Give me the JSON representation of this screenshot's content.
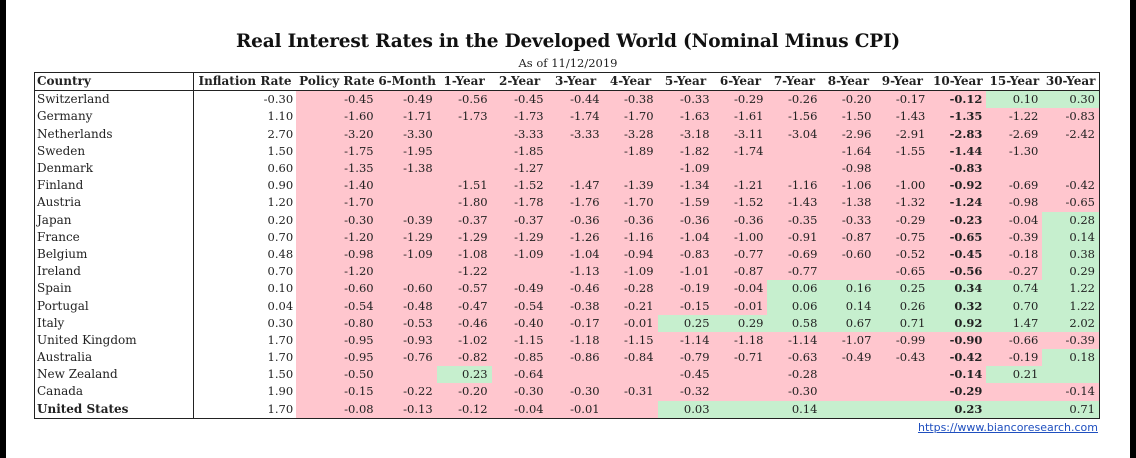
{
  "title": "Real Interest Rates in the Developed World (Nominal Minus CPI)",
  "subtitle": "As of 11/12/2019",
  "source_link": "https://www.biancoresearch.com",
  "colors": {
    "negative": "#ffc6ce",
    "positive": "#c6efce"
  },
  "chart_data": {
    "type": "table",
    "title": "Real Interest Rates in the Developed World (Nominal Minus CPI)",
    "columns": [
      "Country",
      "Inflation Rate",
      "Policy Rate",
      "6-Month",
      "1-Year",
      "2-Year",
      "3-Year",
      "4-Year",
      "5-Year",
      "6-Year",
      "7-Year",
      "8-Year",
      "9-Year",
      "10-Year",
      "15-Year",
      "30-Year"
    ],
    "rows": [
      [
        "Switzerland",
        "-0.30",
        "-0.45",
        "-0.49",
        "-0.56",
        "-0.45",
        "-0.44",
        "-0.38",
        "-0.33",
        "-0.29",
        "-0.26",
        "-0.20",
        "-0.17",
        "-0.12",
        "0.10",
        "0.30"
      ],
      [
        "Germany",
        "1.10",
        "-1.60",
        "-1.71",
        "-1.73",
        "-1.73",
        "-1.74",
        "-1.70",
        "-1.63",
        "-1.61",
        "-1.56",
        "-1.50",
        "-1.43",
        "-1.35",
        "-1.22",
        "-0.83"
      ],
      [
        "Netherlands",
        "2.70",
        "-3.20",
        "-3.30",
        "",
        "-3.33",
        "-3.33",
        "-3.28",
        "-3.18",
        "-3.11",
        "-3.04",
        "-2.96",
        "-2.91",
        "-2.83",
        "-2.69",
        "-2.42"
      ],
      [
        "Sweden",
        "1.50",
        "-1.75",
        "-1.95",
        "",
        "-1.85",
        "",
        "-1.89",
        "-1.82",
        "-1.74",
        "",
        "-1.64",
        "-1.55",
        "-1.44",
        "-1.30",
        ""
      ],
      [
        "Denmark",
        "0.60",
        "-1.35",
        "-1.38",
        "",
        "-1.27",
        "",
        "",
        "-1.09",
        "",
        "",
        "-0.98",
        "",
        "-0.83",
        "",
        ""
      ],
      [
        "Finland",
        "0.90",
        "-1.40",
        "",
        "-1.51",
        "-1.52",
        "-1.47",
        "-1.39",
        "-1.34",
        "-1.21",
        "-1.16",
        "-1.06",
        "-1.00",
        "-0.92",
        "-0.69",
        "-0.42"
      ],
      [
        "Austria",
        "1.20",
        "-1.70",
        "",
        "-1.80",
        "-1.78",
        "-1.76",
        "-1.70",
        "-1.59",
        "-1.52",
        "-1.43",
        "-1.38",
        "-1.32",
        "-1.24",
        "-0.98",
        "-0.65"
      ],
      [
        "Japan",
        "0.20",
        "-0.30",
        "-0.39",
        "-0.37",
        "-0.37",
        "-0.36",
        "-0.36",
        "-0.36",
        "-0.36",
        "-0.35",
        "-0.33",
        "-0.29",
        "-0.23",
        "-0.04",
        "0.28"
      ],
      [
        "France",
        "0.70",
        "-1.20",
        "-1.29",
        "-1.29",
        "-1.29",
        "-1.26",
        "-1.16",
        "-1.04",
        "-1.00",
        "-0.91",
        "-0.87",
        "-0.75",
        "-0.65",
        "-0.39",
        "0.14"
      ],
      [
        "Belgium",
        "0.48",
        "-0.98",
        "-1.09",
        "-1.08",
        "-1.09",
        "-1.04",
        "-0.94",
        "-0.83",
        "-0.77",
        "-0.69",
        "-0.60",
        "-0.52",
        "-0.45",
        "-0.18",
        "0.38"
      ],
      [
        "Ireland",
        "0.70",
        "-1.20",
        "",
        "-1.22",
        "",
        "-1.13",
        "-1.09",
        "-1.01",
        "-0.87",
        "-0.77",
        "",
        "-0.65",
        "-0.56",
        "-0.27",
        "0.29"
      ],
      [
        "Spain",
        "0.10",
        "-0.60",
        "-0.60",
        "-0.57",
        "-0.49",
        "-0.46",
        "-0.28",
        "-0.19",
        "-0.04",
        "0.06",
        "0.16",
        "0.25",
        "0.34",
        "0.74",
        "1.22"
      ],
      [
        "Portugal",
        "0.04",
        "-0.54",
        "-0.48",
        "-0.47",
        "-0.54",
        "-0.38",
        "-0.21",
        "-0.15",
        "-0.01",
        "0.06",
        "0.14",
        "0.26",
        "0.32",
        "0.70",
        "1.22"
      ],
      [
        "Italy",
        "0.30",
        "-0.80",
        "-0.53",
        "-0.46",
        "-0.40",
        "-0.17",
        "-0.01",
        "0.25",
        "0.29",
        "0.58",
        "0.67",
        "0.71",
        "0.92",
        "1.47",
        "2.02"
      ],
      [
        "United Kingdom",
        "1.70",
        "-0.95",
        "-0.93",
        "-1.02",
        "-1.15",
        "-1.18",
        "-1.15",
        "-1.14",
        "-1.18",
        "-1.14",
        "-1.07",
        "-0.99",
        "-0.90",
        "-0.66",
        "-0.39"
      ],
      [
        "Australia",
        "1.70",
        "-0.95",
        "-0.76",
        "-0.82",
        "-0.85",
        "-0.86",
        "-0.84",
        "-0.79",
        "-0.71",
        "-0.63",
        "-0.49",
        "-0.43",
        "-0.42",
        "-0.19",
        "0.18"
      ],
      [
        "New Zealand",
        "1.50",
        "-0.50",
        "",
        "0.23",
        "-0.64",
        "",
        "",
        "-0.45",
        "",
        "-0.28",
        "",
        "",
        "-0.14",
        "0.21",
        ""
      ],
      [
        "Canada",
        "1.90",
        "-0.15",
        "-0.22",
        "-0.20",
        "-0.30",
        "-0.30",
        "-0.31",
        "-0.32",
        "",
        "-0.30",
        "",
        "",
        "-0.29",
        "",
        "-0.14"
      ],
      [
        "United States",
        "1.70",
        "-0.08",
        "-0.13",
        "-0.12",
        "-0.04",
        "-0.01",
        "",
        "0.03",
        "",
        "0.14",
        "",
        "",
        "0.23",
        "",
        "0.71"
      ]
    ],
    "highlighted_row": "United States",
    "highlighted_column": "10-Year"
  }
}
